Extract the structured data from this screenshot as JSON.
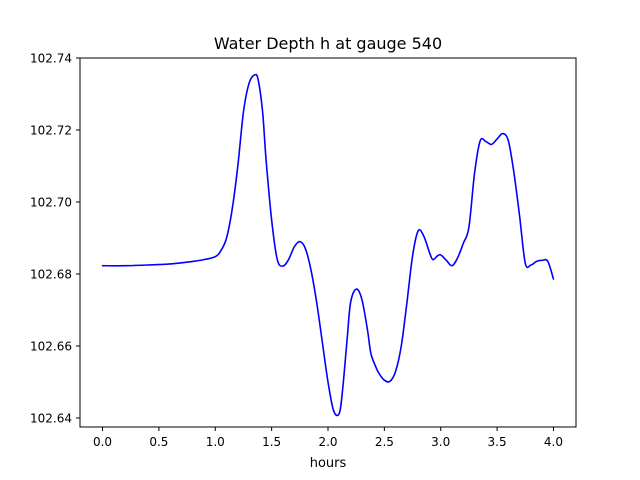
{
  "chart_data": {
    "type": "line",
    "title": "Water Depth h at gauge 540",
    "xlabel": "hours",
    "ylabel": "",
    "xlim": [
      -0.2,
      4.2
    ],
    "ylim": [
      102.6375,
      102.74
    ],
    "xticks": [
      0.0,
      0.5,
      1.0,
      1.5,
      2.0,
      2.5,
      3.0,
      3.5,
      4.0
    ],
    "xtick_labels": [
      "0.0",
      "0.5",
      "1.0",
      "1.5",
      "2.0",
      "2.5",
      "3.0",
      "3.5",
      "4.0"
    ],
    "yticks": [
      102.64,
      102.66,
      102.68,
      102.7,
      102.72,
      102.74
    ],
    "ytick_labels": [
      "102.64",
      "102.66",
      "102.68",
      "102.70",
      "102.72",
      "102.74"
    ],
    "grid": false,
    "series": [
      {
        "color": "#0000ff",
        "x": [
          0.0,
          0.2,
          0.4,
          0.6,
          0.8,
          0.9,
          1.0,
          1.05,
          1.1,
          1.15,
          1.2,
          1.25,
          1.3,
          1.35,
          1.38,
          1.42,
          1.45,
          1.5,
          1.55,
          1.6,
          1.65,
          1.7,
          1.75,
          1.8,
          1.85,
          1.9,
          1.95,
          2.0,
          2.05,
          2.1,
          2.13,
          2.17,
          2.2,
          2.25,
          2.3,
          2.35,
          2.38,
          2.42,
          2.45,
          2.5,
          2.55,
          2.6,
          2.65,
          2.7,
          2.75,
          2.8,
          2.85,
          2.9,
          2.93,
          2.97,
          3.0,
          3.05,
          3.1,
          3.15,
          3.2,
          3.25,
          3.3,
          3.35,
          3.4,
          3.45,
          3.5,
          3.55,
          3.6,
          3.65,
          3.7,
          3.75,
          3.8,
          3.85,
          3.9,
          3.95,
          4.0
        ],
        "y": [
          102.6823,
          102.6823,
          102.6825,
          102.6828,
          102.6835,
          102.684,
          102.6848,
          102.6865,
          102.69,
          102.698,
          102.71,
          102.725,
          102.733,
          102.7353,
          102.734,
          102.725,
          102.712,
          102.695,
          102.684,
          102.6822,
          102.684,
          102.6875,
          102.689,
          102.687,
          102.681,
          102.672,
          102.661,
          102.65,
          102.642,
          102.6413,
          102.648,
          102.662,
          102.672,
          102.6758,
          102.673,
          102.6645,
          102.658,
          102.6545,
          102.6525,
          102.6505,
          102.6502,
          102.653,
          102.66,
          102.672,
          102.685,
          102.692,
          102.6905,
          102.686,
          102.684,
          102.685,
          102.6853,
          102.6838,
          102.6823,
          102.6845,
          102.6885,
          102.693,
          102.708,
          102.717,
          102.7168,
          102.716,
          102.7175,
          102.719,
          102.717,
          102.708,
          102.696,
          102.683,
          102.6825,
          102.6835,
          102.6838,
          102.6835,
          102.6786
        ]
      }
    ]
  }
}
